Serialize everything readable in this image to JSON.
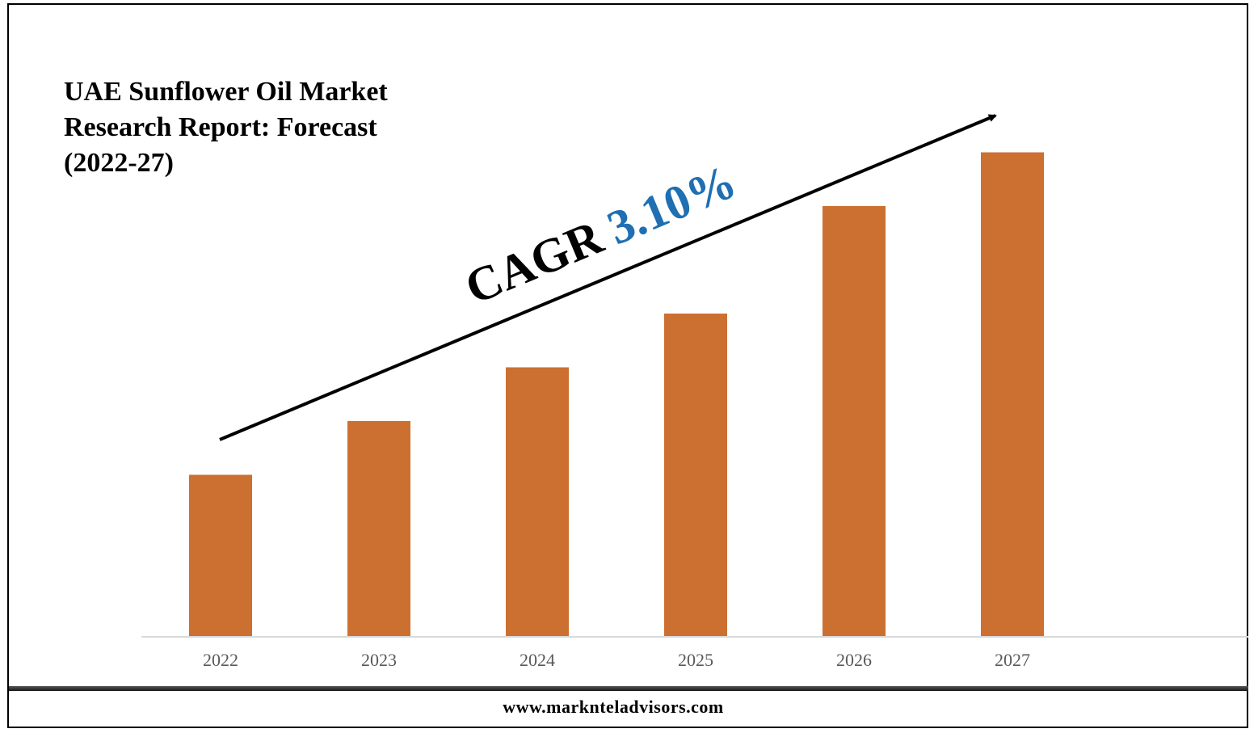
{
  "title_lines": [
    "UAE Sunflower Oil Market",
    "Research Report: Forecast",
    "(2022-27)"
  ],
  "cagr": {
    "label": "CAGR",
    "value": "3.10%",
    "value_color": "#1F6FB2"
  },
  "footer": {
    "url": "www.marknteladvisors.com"
  },
  "chart_data": {
    "type": "bar",
    "title": "UAE Sunflower Oil Market Research Report: Forecast (2022-27)",
    "categories": [
      "2022",
      "2023",
      "2024",
      "2025",
      "2026",
      "2027"
    ],
    "values": [
      30,
      40,
      50,
      60,
      80,
      90
    ],
    "ylim": [
      0,
      100
    ],
    "bar_color": "#CC7031",
    "xlabel": "",
    "ylabel": "",
    "grid": false,
    "y_axis_shown": false,
    "annotation": "CAGR 3.10%"
  }
}
